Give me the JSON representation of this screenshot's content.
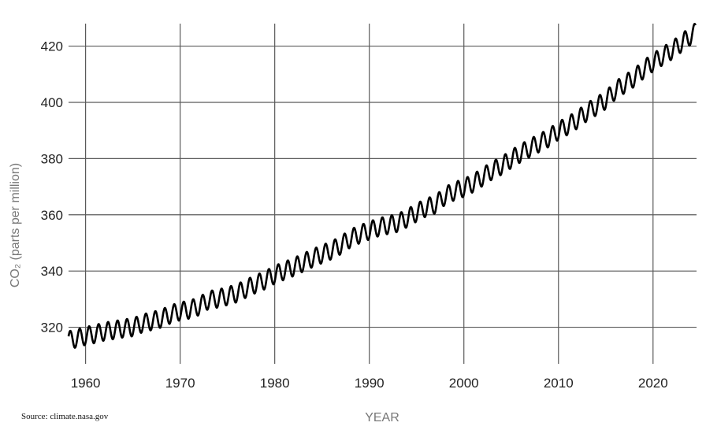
{
  "chart_data": {
    "type": "line",
    "title": "",
    "xlabel": "YEAR",
    "ylabel": "CO₂ (parts per million)",
    "source": "Source: climate.nasa.gov",
    "xlim": [
      1958.2,
      2024.6
    ],
    "ylim": [
      307,
      428
    ],
    "x_ticks": [
      1960,
      1970,
      1980,
      1990,
      2000,
      2010,
      2020
    ],
    "y_ticks": [
      320,
      340,
      360,
      380,
      400,
      420
    ],
    "grid": true,
    "line_color": "#000000",
    "series": [
      {
        "name": "",
        "x": [
          1958.2,
          1959,
          1960,
          1961,
          1962,
          1963,
          1964,
          1965,
          1966,
          1967,
          1968,
          1969,
          1970,
          1971,
          1972,
          1973,
          1974,
          1975,
          1976,
          1977,
          1978,
          1979,
          1980,
          1981,
          1982,
          1983,
          1984,
          1985,
          1986,
          1987,
          1988,
          1989,
          1990,
          1991,
          1992,
          1993,
          1994,
          1995,
          1996,
          1997,
          1998,
          1999,
          2000,
          2001,
          2002,
          2003,
          2004,
          2005,
          2006,
          2007,
          2008,
          2009,
          2010,
          2011,
          2012,
          2013,
          2014,
          2015,
          2016,
          2017,
          2018,
          2019,
          2020,
          2021,
          2022,
          2023,
          2024.5
        ],
        "values": [
          315.4,
          316.0,
          316.9,
          317.6,
          318.5,
          319.0,
          319.6,
          320.0,
          321.4,
          322.2,
          323.1,
          324.6,
          325.7,
          326.3,
          327.5,
          329.7,
          330.2,
          331.1,
          332.1,
          333.8,
          335.4,
          336.8,
          338.7,
          340.1,
          341.4,
          343.0,
          344.6,
          346.0,
          347.4,
          349.2,
          351.6,
          353.1,
          354.4,
          355.6,
          356.4,
          357.1,
          358.8,
          360.8,
          362.6,
          363.7,
          366.7,
          368.4,
          369.6,
          371.3,
          373.5,
          375.8,
          377.5,
          379.8,
          381.9,
          383.8,
          385.6,
          387.4,
          389.9,
          391.7,
          393.9,
          396.5,
          398.6,
          400.8,
          404.2,
          406.5,
          408.7,
          411.7,
          414.2,
          416.4,
          418.5,
          421.1,
          425.0
        ],
        "seasonal_amplitude_ppm": 3.2
      }
    ]
  }
}
